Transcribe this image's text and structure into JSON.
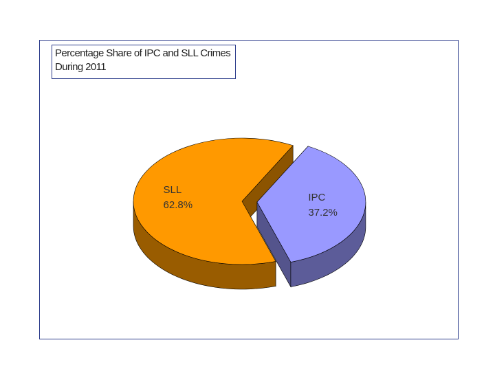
{
  "chart_data": {
    "type": "pie",
    "title": "Percentage  Share of IPC and SLL Crimes During 2011",
    "categories": [
      "IPC",
      "SLL"
    ],
    "values": [
      37.2,
      62.8
    ],
    "value_labels": [
      "37.2%",
      "62.8%"
    ],
    "colors": [
      "#9999ff",
      "#ff9900"
    ],
    "exploded": [
      "IPC"
    ]
  }
}
